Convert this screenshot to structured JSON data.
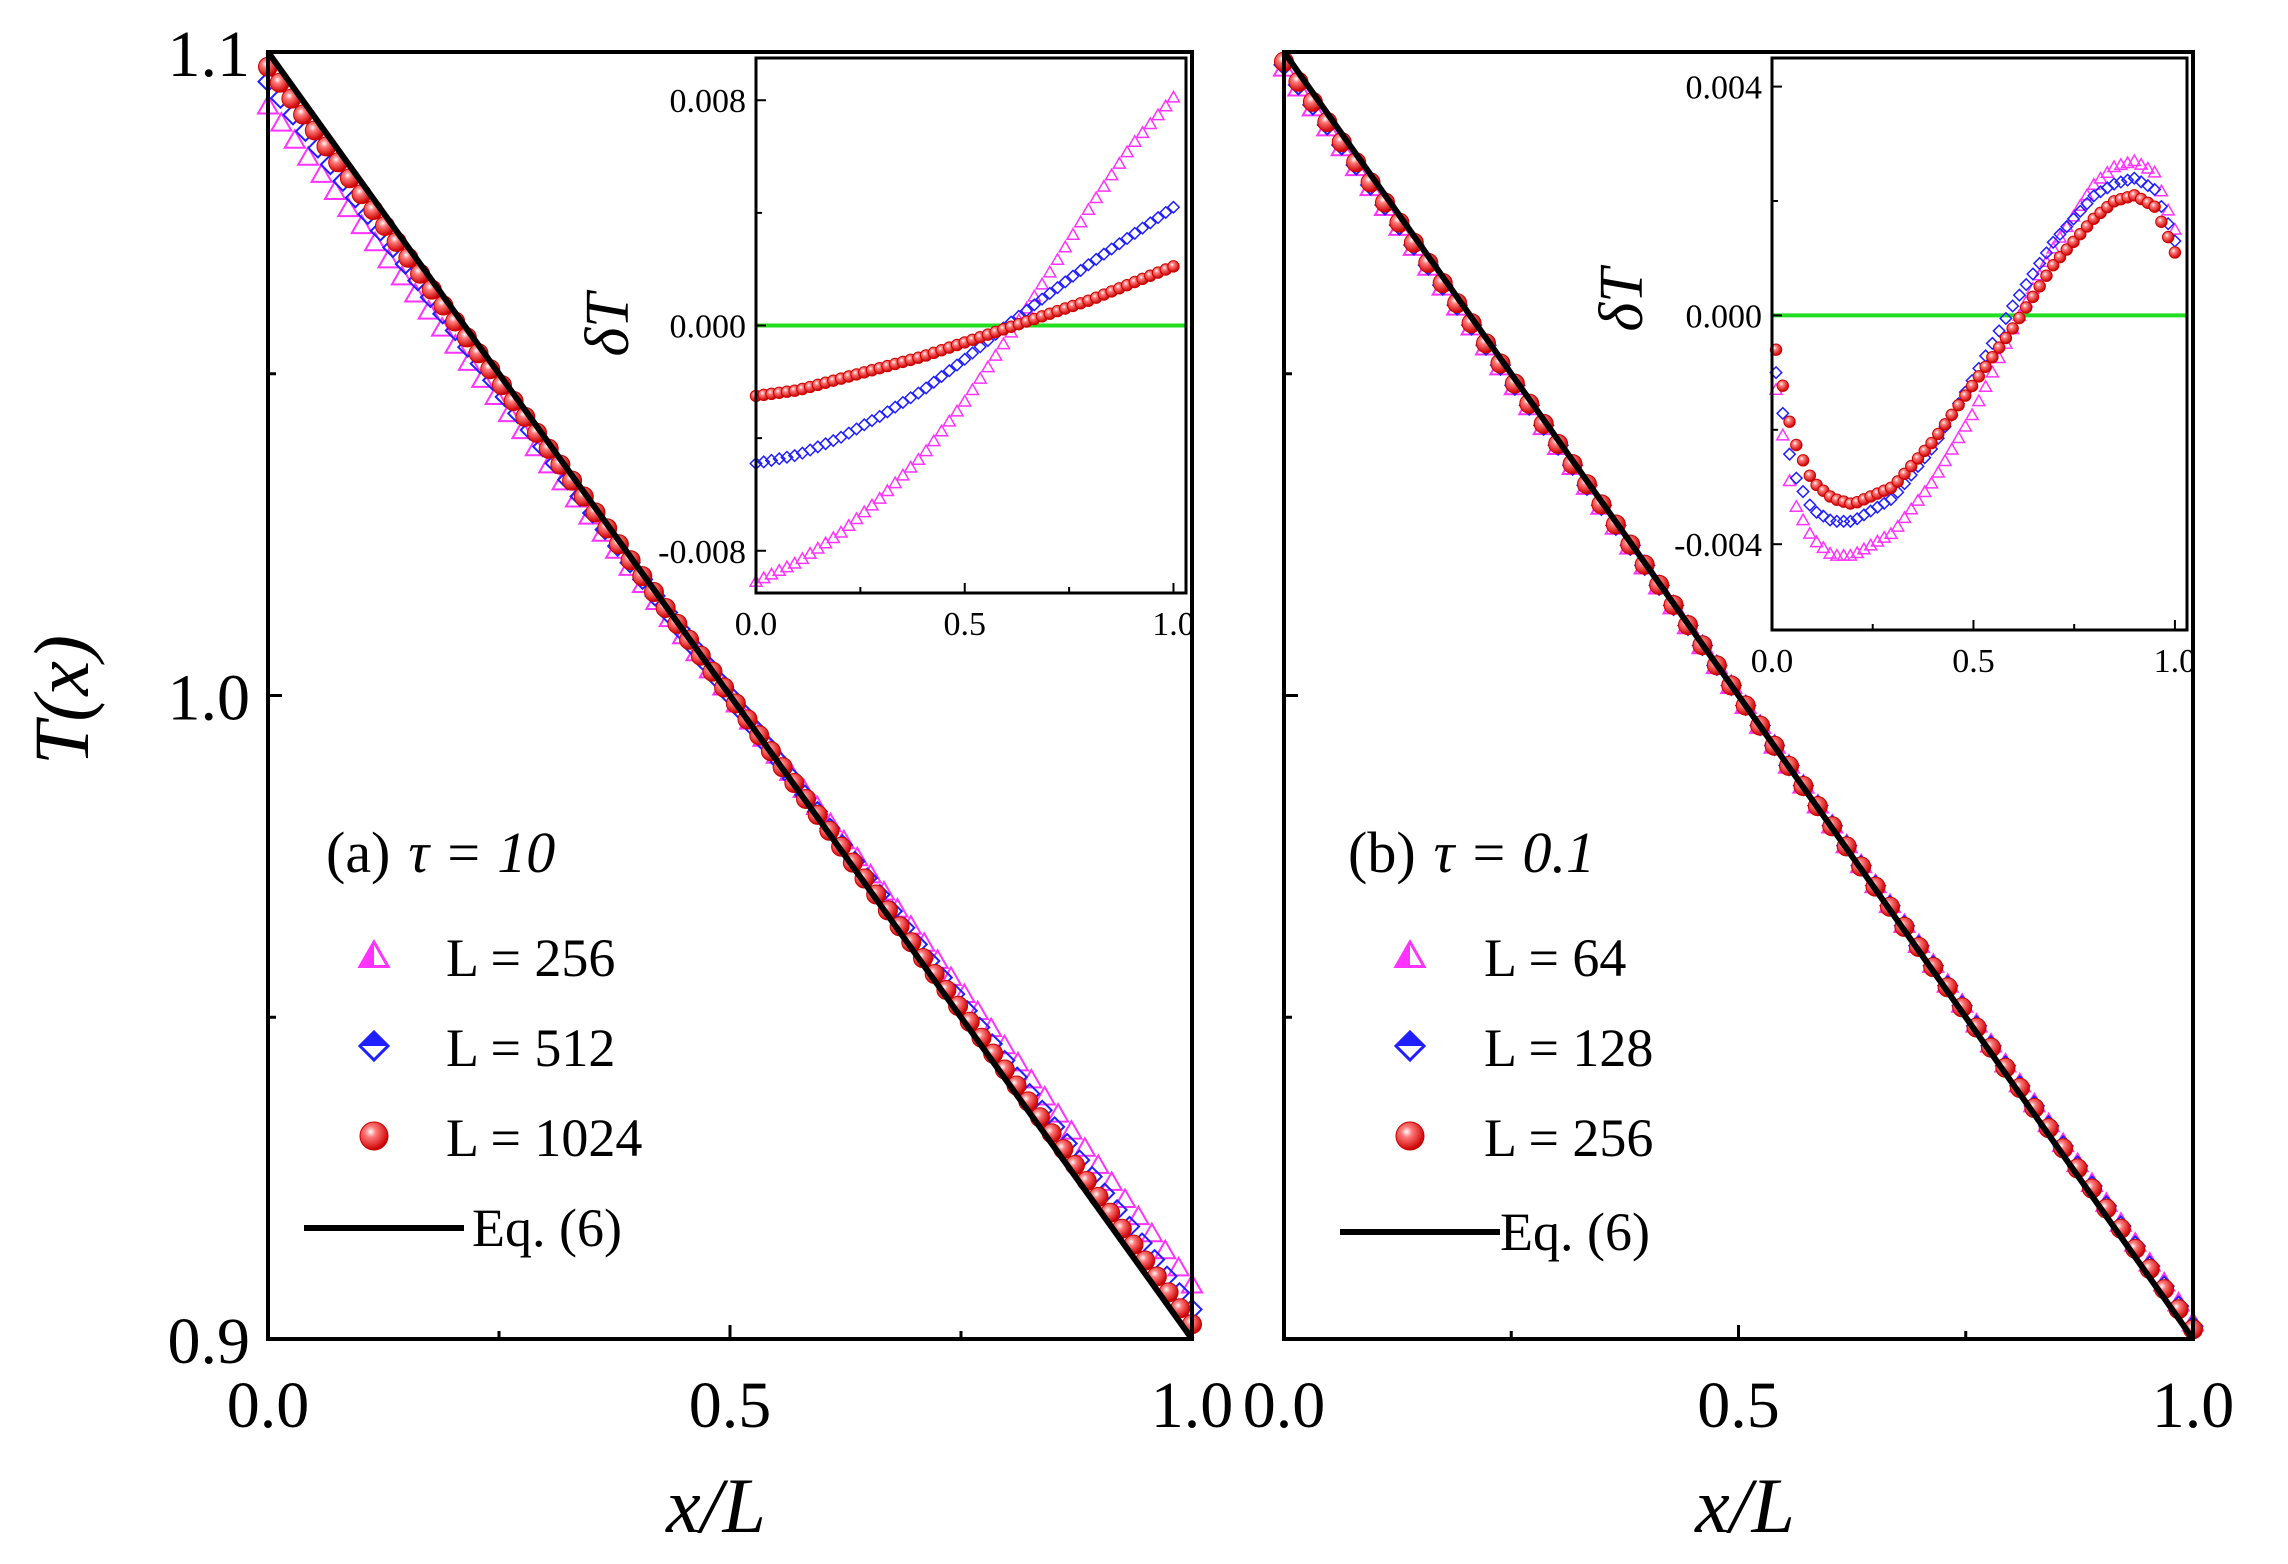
{
  "figure": {
    "y_axis_label": "T(x)",
    "x_axis_label": "x/L",
    "colors": {
      "magenta": "#ff33ff",
      "blue": "#1f1fff",
      "red": "#ee1111",
      "black": "#000000",
      "green": "#22dd22"
    }
  },
  "chart_data": [
    {
      "type": "scatter",
      "panel": "a",
      "panel_label": "(a)",
      "tau_label": "τ = 10",
      "xlabel": "x/L",
      "ylabel": "T(x)",
      "xlim": [
        0,
        1
      ],
      "ylim": [
        0.9,
        1.1
      ],
      "x_ticks": [
        "0.0",
        "0.5",
        "1.0"
      ],
      "y_ticks": [
        "0.9",
        "1.0",
        "1.1"
      ],
      "legend_position": "lower-left",
      "series": [
        {
          "name": "L = 256",
          "marker": "triangle",
          "color": "#ff33ff",
          "points": [
            [
              0,
              1.0916
            ],
            [
              0.5,
              1.0
            ],
            [
              1,
              0.9084
            ]
          ]
        },
        {
          "name": "L = 512",
          "marker": "diamond",
          "color": "#1f1fff",
          "points": [
            [
              0,
              1.0954
            ],
            [
              0.5,
              1.0
            ],
            [
              1,
              0.9046
            ]
          ]
        },
        {
          "name": "L = 1024",
          "marker": "sphere",
          "color": "#ee1111",
          "points": [
            [
              0,
              1.0977
            ],
            [
              0.5,
              1.0
            ],
            [
              1,
              0.9023
            ]
          ]
        },
        {
          "name": "Eq. (6)",
          "marker": "line",
          "color": "#000000",
          "points": [
            [
              0,
              1.1
            ],
            [
              1,
              0.9
            ]
          ]
        }
      ],
      "inset": {
        "ylabel": "δT",
        "xlim": [
          0,
          1.03
        ],
        "ylim": [
          -0.0095,
          0.0095
        ],
        "x_ticks": [
          "0.0",
          "0.5",
          "1.0"
        ],
        "y_ticks": [
          "-0.008",
          "0.000",
          "0.008"
        ],
        "zero_line_color": "#22dd22",
        "series": [
          {
            "name": "L = 256",
            "marker": "triangle",
            "color": "#ff33ff",
            "points": [
              [
                0,
                -0.0091
              ],
              [
                0.1,
                -0.0084
              ],
              [
                0.2,
                -0.0074
              ],
              [
                0.3,
                -0.0061
              ],
              [
                0.4,
                -0.0046
              ],
              [
                0.5,
                -0.0027
              ],
              [
                0.6,
                -0.0005
              ],
              [
                0.7,
                0.0018
              ],
              [
                0.8,
                0.0042
              ],
              [
                0.9,
                0.0064
              ],
              [
                1.0,
                0.0081
              ]
            ]
          },
          {
            "name": "L = 512",
            "marker": "diamond",
            "color": "#1f1fff",
            "points": [
              [
                0,
                -0.0049
              ],
              [
                0.1,
                -0.0046
              ],
              [
                0.2,
                -0.004
              ],
              [
                0.3,
                -0.0032
              ],
              [
                0.4,
                -0.0023
              ],
              [
                0.5,
                -0.0012
              ],
              [
                0.6,
                0.0
              ],
              [
                0.7,
                0.0011
              ],
              [
                0.8,
                0.0022
              ],
              [
                0.9,
                0.0032
              ],
              [
                1.0,
                0.0042
              ]
            ]
          },
          {
            "name": "L = 1024",
            "marker": "sphere",
            "color": "#ee1111",
            "points": [
              [
                0,
                -0.0025
              ],
              [
                0.1,
                -0.0023
              ],
              [
                0.2,
                -0.0019
              ],
              [
                0.3,
                -0.0015
              ],
              [
                0.4,
                -0.0011
              ],
              [
                0.5,
                -0.0006
              ],
              [
                0.6,
                -0.0001
              ],
              [
                0.7,
                0.0004
              ],
              [
                0.8,
                0.0009
              ],
              [
                0.9,
                0.0015
              ],
              [
                1.0,
                0.0021
              ]
            ]
          }
        ]
      }
    },
    {
      "type": "scatter",
      "panel": "b",
      "panel_label": "(b)",
      "tau_label": "τ = 0.1",
      "xlabel": "x/L",
      "ylabel": "T(x)",
      "xlim": [
        0,
        1
      ],
      "ylim": [
        0.9,
        1.1
      ],
      "x_ticks": [
        "0.0",
        "0.5",
        "1.0"
      ],
      "legend_position": "lower-left",
      "series": [
        {
          "name": "L = 64",
          "marker": "triangle",
          "color": "#ff33ff",
          "points": [
            [
              0,
              1.0975
            ],
            [
              0.5,
              1.0
            ],
            [
              1,
              0.9025
            ]
          ]
        },
        {
          "name": "L = 128",
          "marker": "diamond",
          "color": "#1f1fff",
          "points": [
            [
              0,
              1.098
            ],
            [
              0.5,
              1.0
            ],
            [
              1,
              0.902
            ]
          ]
        },
        {
          "name": "L = 256",
          "marker": "sphere",
          "color": "#ee1111",
          "points": [
            [
              0,
              1.0985
            ],
            [
              0.5,
              1.0
            ],
            [
              1,
              0.9015
            ]
          ]
        },
        {
          "name": "Eq. (6)",
          "marker": "line",
          "color": "#000000",
          "points": [
            [
              0,
              1.1
            ],
            [
              1,
              0.9
            ]
          ]
        }
      ],
      "inset": {
        "ylabel": "δT",
        "xlim": [
          0,
          1.03
        ],
        "ylim": [
          -0.0055,
          0.0045
        ],
        "x_ticks": [
          "0.0",
          "0.5",
          "1.0"
        ],
        "y_ticks": [
          "-0.004",
          "0.000",
          "0.004"
        ],
        "zero_line_color": "#22dd22",
        "series": [
          {
            "name": "L = 64",
            "marker": "triangle",
            "color": "#ff33ff",
            "points": [
              [
                0.01,
                -0.0013
              ],
              [
                0.05,
                -0.0032
              ],
              [
                0.1,
                -0.0039
              ],
              [
                0.15,
                -0.0042
              ],
              [
                0.2,
                -0.0042
              ],
              [
                0.3,
                -0.0038
              ],
              [
                0.4,
                -0.0029
              ],
              [
                0.5,
                -0.0017
              ],
              [
                0.6,
                -0.0002
              ],
              [
                0.7,
                0.0012
              ],
              [
                0.8,
                0.0023
              ],
              [
                0.85,
                0.0026
              ],
              [
                0.9,
                0.0027
              ],
              [
                0.95,
                0.0025
              ],
              [
                1.0,
                0.0015
              ]
            ]
          },
          {
            "name": "L = 128",
            "marker": "diamond",
            "color": "#1f1fff",
            "points": [
              [
                0.01,
                -0.001
              ],
              [
                0.05,
                -0.0027
              ],
              [
                0.1,
                -0.0034
              ],
              [
                0.15,
                -0.0036
              ],
              [
                0.2,
                -0.0036
              ],
              [
                0.3,
                -0.0032
              ],
              [
                0.4,
                -0.0023
              ],
              [
                0.5,
                -0.0011
              ],
              [
                0.6,
                0.0002
              ],
              [
                0.7,
                0.0013
              ],
              [
                0.8,
                0.0021
              ],
              [
                0.85,
                0.0023
              ],
              [
                0.9,
                0.0024
              ],
              [
                0.95,
                0.0022
              ],
              [
                1.0,
                0.0013
              ]
            ]
          },
          {
            "name": "L = 256",
            "marker": "sphere",
            "color": "#ee1111",
            "points": [
              [
                0.01,
                -0.0006
              ],
              [
                0.05,
                -0.0021
              ],
              [
                0.1,
                -0.0029
              ],
              [
                0.15,
                -0.0032
              ],
              [
                0.2,
                -0.0033
              ],
              [
                0.3,
                -0.003
              ],
              [
                0.4,
                -0.0022
              ],
              [
                0.5,
                -0.0012
              ],
              [
                0.6,
                -0.0002
              ],
              [
                0.7,
                0.0009
              ],
              [
                0.8,
                0.0017
              ],
              [
                0.85,
                0.002
              ],
              [
                0.9,
                0.0021
              ],
              [
                0.95,
                0.0019
              ],
              [
                1.0,
                0.0011
              ]
            ]
          }
        ]
      }
    }
  ]
}
